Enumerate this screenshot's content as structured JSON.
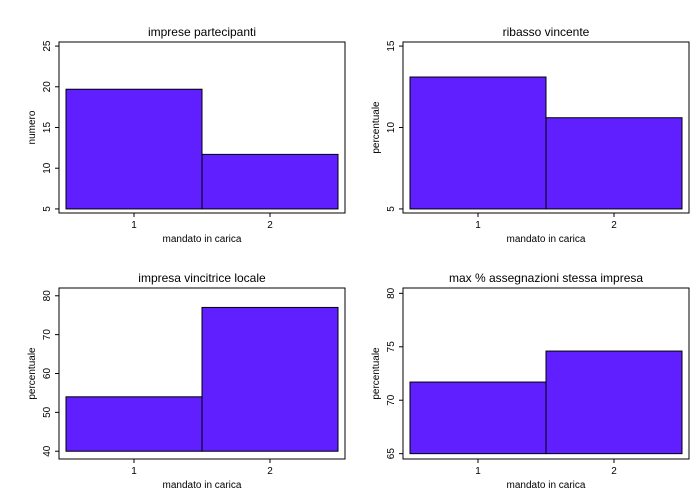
{
  "chart_data": [
    {
      "type": "bar",
      "title": "imprese partecipanti",
      "xlabel": "mandato in carica",
      "ylabel": "numero",
      "categories": [
        "1",
        "2"
      ],
      "values": [
        19.7,
        11.7
      ],
      "ylim": [
        4.5,
        25.5
      ],
      "yticks": [
        "5",
        "10",
        "15",
        "20",
        "25"
      ],
      "bar_color": "#5f1fff"
    },
    {
      "type": "bar",
      "title": "ribasso vincente",
      "xlabel": "mandato in carica",
      "ylabel": "percentuale",
      "categories": [
        "1",
        "2"
      ],
      "values": [
        13.1,
        10.6
      ],
      "ylim": [
        4.75,
        15.25
      ],
      "yticks": [
        "5",
        "10",
        "15"
      ],
      "bar_color": "#5f1fff"
    },
    {
      "type": "bar",
      "title": "impresa vincitrice locale",
      "xlabel": "mandato in carica",
      "ylabel": "percentuale",
      "categories": [
        "1",
        "2"
      ],
      "values": [
        54,
        77
      ],
      "ylim": [
        38,
        82
      ],
      "yticks": [
        "40",
        "50",
        "60",
        "70",
        "80"
      ],
      "bar_color": "#5f1fff"
    },
    {
      "type": "bar",
      "title": "max % assegnazioni stessa impresa",
      "xlabel": "mandato in carica",
      "ylabel": "percentuale",
      "categories": [
        "1",
        "2"
      ],
      "values": [
        71.7,
        74.6
      ],
      "ylim": [
        64.5,
        80.5
      ],
      "yticks": [
        "65",
        "70",
        "75",
        "80"
      ],
      "bar_color": "#5f1fff"
    }
  ]
}
